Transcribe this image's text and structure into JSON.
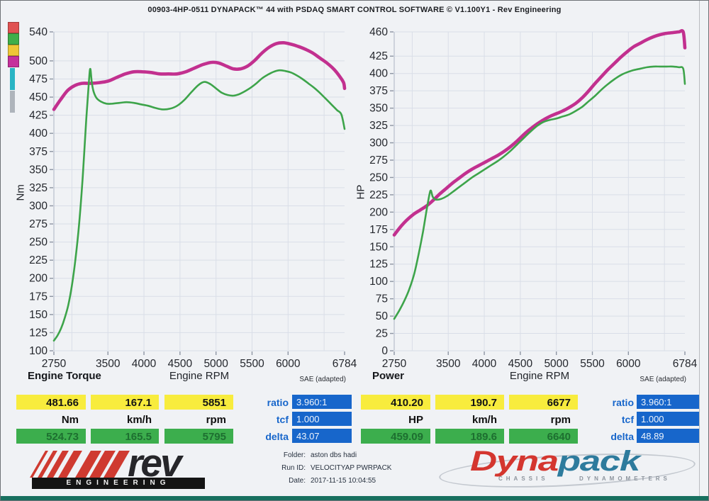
{
  "header": {
    "title": "00903-4HP-0511 DYNAPACK™ 44 with PSDAQ SMART CONTROL SOFTWARE © V1.100Y1 - Rev Engineering"
  },
  "legend_swatches": {
    "squares": [
      "#e05252",
      "#3fae4a",
      "#eec636",
      "#c5309c"
    ],
    "bars": [
      "#29b4c4",
      "#aeb4bb"
    ]
  },
  "charts": {
    "torque": {
      "name_label": "Engine Torque",
      "xlabel": "Engine RPM",
      "ylabel": "Nm",
      "sae_note": "SAE (adapted)"
    },
    "power": {
      "name_label": "Power",
      "xlabel": "Engine RPM",
      "ylabel": "HP",
      "sae_note": "SAE (adapted)"
    }
  },
  "chart_data": [
    {
      "type": "line",
      "title": "Engine Torque",
      "xlabel": "Engine RPM",
      "ylabel": "Nm",
      "note": "SAE (adapted)",
      "xlim": [
        2750,
        6784
      ],
      "ylim": [
        100,
        540
      ],
      "x_ticks": [
        2750,
        3500,
        4000,
        4500,
        5000,
        5500,
        6000,
        6784
      ],
      "y_ticks": [
        540,
        500,
        475,
        450,
        425,
        400,
        375,
        350,
        325,
        300,
        275,
        250,
        225,
        200,
        175,
        150,
        125,
        100
      ],
      "x_grid": [
        3000,
        3500,
        4000,
        4500,
        5000,
        5500,
        6000,
        6500
      ],
      "grid": true,
      "series": [
        {
          "name": "torque-run-magenta",
          "color": "#c2308f",
          "width": 4.6,
          "points": [
            [
              2750,
              433
            ],
            [
              2840,
              446
            ],
            [
              2940,
              459
            ],
            [
              3040,
              466
            ],
            [
              3140,
              469
            ],
            [
              3260,
              469
            ],
            [
              3380,
              470
            ],
            [
              3500,
              472
            ],
            [
              3620,
              477
            ],
            [
              3740,
              482
            ],
            [
              3860,
              485
            ],
            [
              3980,
              485
            ],
            [
              4100,
              484
            ],
            [
              4220,
              482
            ],
            [
              4340,
              482
            ],
            [
              4460,
              482
            ],
            [
              4580,
              485
            ],
            [
              4700,
              490
            ],
            [
              4820,
              495
            ],
            [
              4940,
              498
            ],
            [
              5040,
              497
            ],
            [
              5140,
              493
            ],
            [
              5240,
              489
            ],
            [
              5340,
              489
            ],
            [
              5440,
              493
            ],
            [
              5540,
              501
            ],
            [
              5640,
              511
            ],
            [
              5740,
              519
            ],
            [
              5840,
              524
            ],
            [
              5940,
              525
            ],
            [
              6040,
              523
            ],
            [
              6140,
              520
            ],
            [
              6240,
              516
            ],
            [
              6340,
              511
            ],
            [
              6440,
              504
            ],
            [
              6540,
              497
            ],
            [
              6640,
              488
            ],
            [
              6720,
              478
            ],
            [
              6770,
              470
            ],
            [
              6784,
              462
            ]
          ]
        },
        {
          "name": "torque-run-green",
          "color": "#3da44a",
          "width": 2.6,
          "points": [
            [
              2750,
              114
            ],
            [
              2800,
              121
            ],
            [
              2850,
              131
            ],
            [
              2900,
              145
            ],
            [
              2950,
              163
            ],
            [
              3000,
              190
            ],
            [
              3050,
              227
            ],
            [
              3100,
              275
            ],
            [
              3150,
              340
            ],
            [
              3200,
              420
            ],
            [
              3235,
              470
            ],
            [
              3255,
              489
            ],
            [
              3275,
              471
            ],
            [
              3300,
              458
            ],
            [
              3340,
              449
            ],
            [
              3400,
              444
            ],
            [
              3480,
              441
            ],
            [
              3560,
              441
            ],
            [
              3660,
              442
            ],
            [
              3760,
              443
            ],
            [
              3860,
              442
            ],
            [
              3960,
              440
            ],
            [
              4060,
              438
            ],
            [
              4160,
              435
            ],
            [
              4260,
              433
            ],
            [
              4360,
              434
            ],
            [
              4460,
              438
            ],
            [
              4560,
              446
            ],
            [
              4660,
              457
            ],
            [
              4760,
              467
            ],
            [
              4840,
              471
            ],
            [
              4920,
              468
            ],
            [
              5000,
              462
            ],
            [
              5080,
              456
            ],
            [
              5160,
              453
            ],
            [
              5240,
              452
            ],
            [
              5320,
              454
            ],
            [
              5400,
              458
            ],
            [
              5480,
              463
            ],
            [
              5560,
              469
            ],
            [
              5640,
              476
            ],
            [
              5720,
              481
            ],
            [
              5800,
              485
            ],
            [
              5880,
              487
            ],
            [
              5960,
              486
            ],
            [
              6040,
              484
            ],
            [
              6120,
              480
            ],
            [
              6200,
              475
            ],
            [
              6280,
              469
            ],
            [
              6360,
              463
            ],
            [
              6440,
              456
            ],
            [
              6520,
              448
            ],
            [
              6600,
              440
            ],
            [
              6680,
              432
            ],
            [
              6740,
              426
            ],
            [
              6784,
              406
            ]
          ]
        }
      ]
    },
    {
      "type": "line",
      "title": "Power",
      "xlabel": "Engine RPM",
      "ylabel": "HP",
      "note": "SAE (adapted)",
      "xlim": [
        2750,
        6784
      ],
      "ylim": [
        0,
        460
      ],
      "x_ticks": [
        2750,
        3500,
        4000,
        4500,
        5000,
        5500,
        6000,
        6784
      ],
      "y_ticks": [
        460,
        425,
        400,
        375,
        350,
        325,
        300,
        275,
        250,
        225,
        200,
        175,
        150,
        125,
        100,
        75,
        50,
        25,
        0
      ],
      "x_grid": [
        3000,
        3500,
        4000,
        4500,
        5000,
        5500,
        6000,
        6500
      ],
      "grid": true,
      "series": [
        {
          "name": "power-run-magenta",
          "color": "#c2308f",
          "width": 4.6,
          "points": [
            [
              2750,
              167
            ],
            [
              2840,
              179
            ],
            [
              2930,
              189
            ],
            [
              3020,
              197
            ],
            [
              3110,
              203
            ],
            [
              3200,
              209
            ],
            [
              3290,
              217
            ],
            [
              3380,
              226
            ],
            [
              3470,
              234
            ],
            [
              3560,
              242
            ],
            [
              3650,
              249
            ],
            [
              3740,
              256
            ],
            [
              3830,
              262
            ],
            [
              3920,
              267
            ],
            [
              4010,
              272
            ],
            [
              4100,
              277
            ],
            [
              4190,
              282
            ],
            [
              4280,
              288
            ],
            [
              4370,
              295
            ],
            [
              4460,
              303
            ],
            [
              4550,
              312
            ],
            [
              4640,
              320
            ],
            [
              4730,
              327
            ],
            [
              4820,
              333
            ],
            [
              4910,
              338
            ],
            [
              5000,
              342
            ],
            [
              5090,
              346
            ],
            [
              5180,
              351
            ],
            [
              5270,
              357
            ],
            [
              5360,
              365
            ],
            [
              5450,
              375
            ],
            [
              5540,
              386
            ],
            [
              5630,
              396
            ],
            [
              5720,
              406
            ],
            [
              5810,
              415
            ],
            [
              5900,
              424
            ],
            [
              5990,
              432
            ],
            [
              6080,
              439
            ],
            [
              6170,
              444
            ],
            [
              6260,
              449
            ],
            [
              6350,
              453
            ],
            [
              6440,
              456
            ],
            [
              6530,
              458
            ],
            [
              6620,
              459
            ],
            [
              6700,
              460
            ],
            [
              6760,
              460
            ],
            [
              6784,
              437
            ]
          ]
        },
        {
          "name": "power-run-green",
          "color": "#3da44a",
          "width": 2.6,
          "points": [
            [
              2750,
              46
            ],
            [
              2820,
              58
            ],
            [
              2890,
              72
            ],
            [
              2960,
              89
            ],
            [
              3030,
              112
            ],
            [
              3090,
              140
            ],
            [
              3150,
              172
            ],
            [
              3200,
              203
            ],
            [
              3240,
              226
            ],
            [
              3260,
              231
            ],
            [
              3285,
              222
            ],
            [
              3330,
              218
            ],
            [
              3400,
              219
            ],
            [
              3480,
              223
            ],
            [
              3560,
              229
            ],
            [
              3650,
              236
            ],
            [
              3740,
              243
            ],
            [
              3830,
              250
            ],
            [
              3920,
              256
            ],
            [
              4010,
              262
            ],
            [
              4100,
              268
            ],
            [
              4190,
              274
            ],
            [
              4280,
              281
            ],
            [
              4370,
              289
            ],
            [
              4460,
              298
            ],
            [
              4550,
              307
            ],
            [
              4640,
              316
            ],
            [
              4730,
              324
            ],
            [
              4820,
              330
            ],
            [
              4910,
              333
            ],
            [
              5000,
              335
            ],
            [
              5090,
              338
            ],
            [
              5180,
              341
            ],
            [
              5270,
              346
            ],
            [
              5360,
              352
            ],
            [
              5450,
              360
            ],
            [
              5540,
              368
            ],
            [
              5630,
              377
            ],
            [
              5720,
              385
            ],
            [
              5810,
              392
            ],
            [
              5900,
              398
            ],
            [
              5990,
              402
            ],
            [
              6080,
              405
            ],
            [
              6170,
              407
            ],
            [
              6260,
              409
            ],
            [
              6350,
              410
            ],
            [
              6440,
              410
            ],
            [
              6530,
              410
            ],
            [
              6620,
              410
            ],
            [
              6700,
              409
            ],
            [
              6760,
              407
            ],
            [
              6784,
              385
            ]
          ]
        }
      ]
    }
  ],
  "panels": {
    "torque": {
      "peak_row": [
        "481.66",
        "167.1",
        "5851"
      ],
      "unit_row": [
        "Nm",
        "km/h",
        "rpm"
      ],
      "ref_row": [
        "524.73",
        "165.5",
        "5795"
      ],
      "params": [
        {
          "label": "ratio",
          "value": "3.960:1"
        },
        {
          "label": "tcf",
          "value": "1.000"
        },
        {
          "label": "delta",
          "value": "43.07"
        }
      ]
    },
    "power": {
      "peak_row": [
        "410.20",
        "190.7",
        "6677"
      ],
      "unit_row": [
        "HP",
        "km/h",
        "rpm"
      ],
      "ref_row": [
        "459.09",
        "189.6",
        "6640"
      ],
      "params": [
        {
          "label": "ratio",
          "value": "3.960:1"
        },
        {
          "label": "tcf",
          "value": "1.000"
        },
        {
          "label": "delta",
          "value": "48.89"
        }
      ]
    }
  },
  "run_info": {
    "folder_label": "Folder:",
    "folder": "aston dbs hadi",
    "run_id_label": "Run ID:",
    "run_id": "VELOCITYAP PWRPACK",
    "date_label": "Date:",
    "date": "2017-11-15 10:04:55"
  },
  "logos": {
    "rev": {
      "text": "rev",
      "sub": "ENGINEERING",
      "red": "#cf3a30"
    },
    "dynapack": {
      "part1": "Dyna",
      "part2": "pack",
      "sub1": "CHASSIS",
      "sub2": "DYNAMOMETERS",
      "red": "#d4362f",
      "blue": "#2e7b9d"
    }
  },
  "colors": {
    "paper": "#f0f2f5",
    "gridline": "#d9dee8",
    "axis": "#b7bfcc",
    "yellow_cell": "#f8ec3d",
    "green_cell": "#3cae4d",
    "blue_cell": "#1766cb",
    "param_label": "#1766cb",
    "green_text": "#1d6f30",
    "bottom_strip": "#18705f",
    "magenta_curve": "#c2308f",
    "green_curve": "#3da44a"
  }
}
